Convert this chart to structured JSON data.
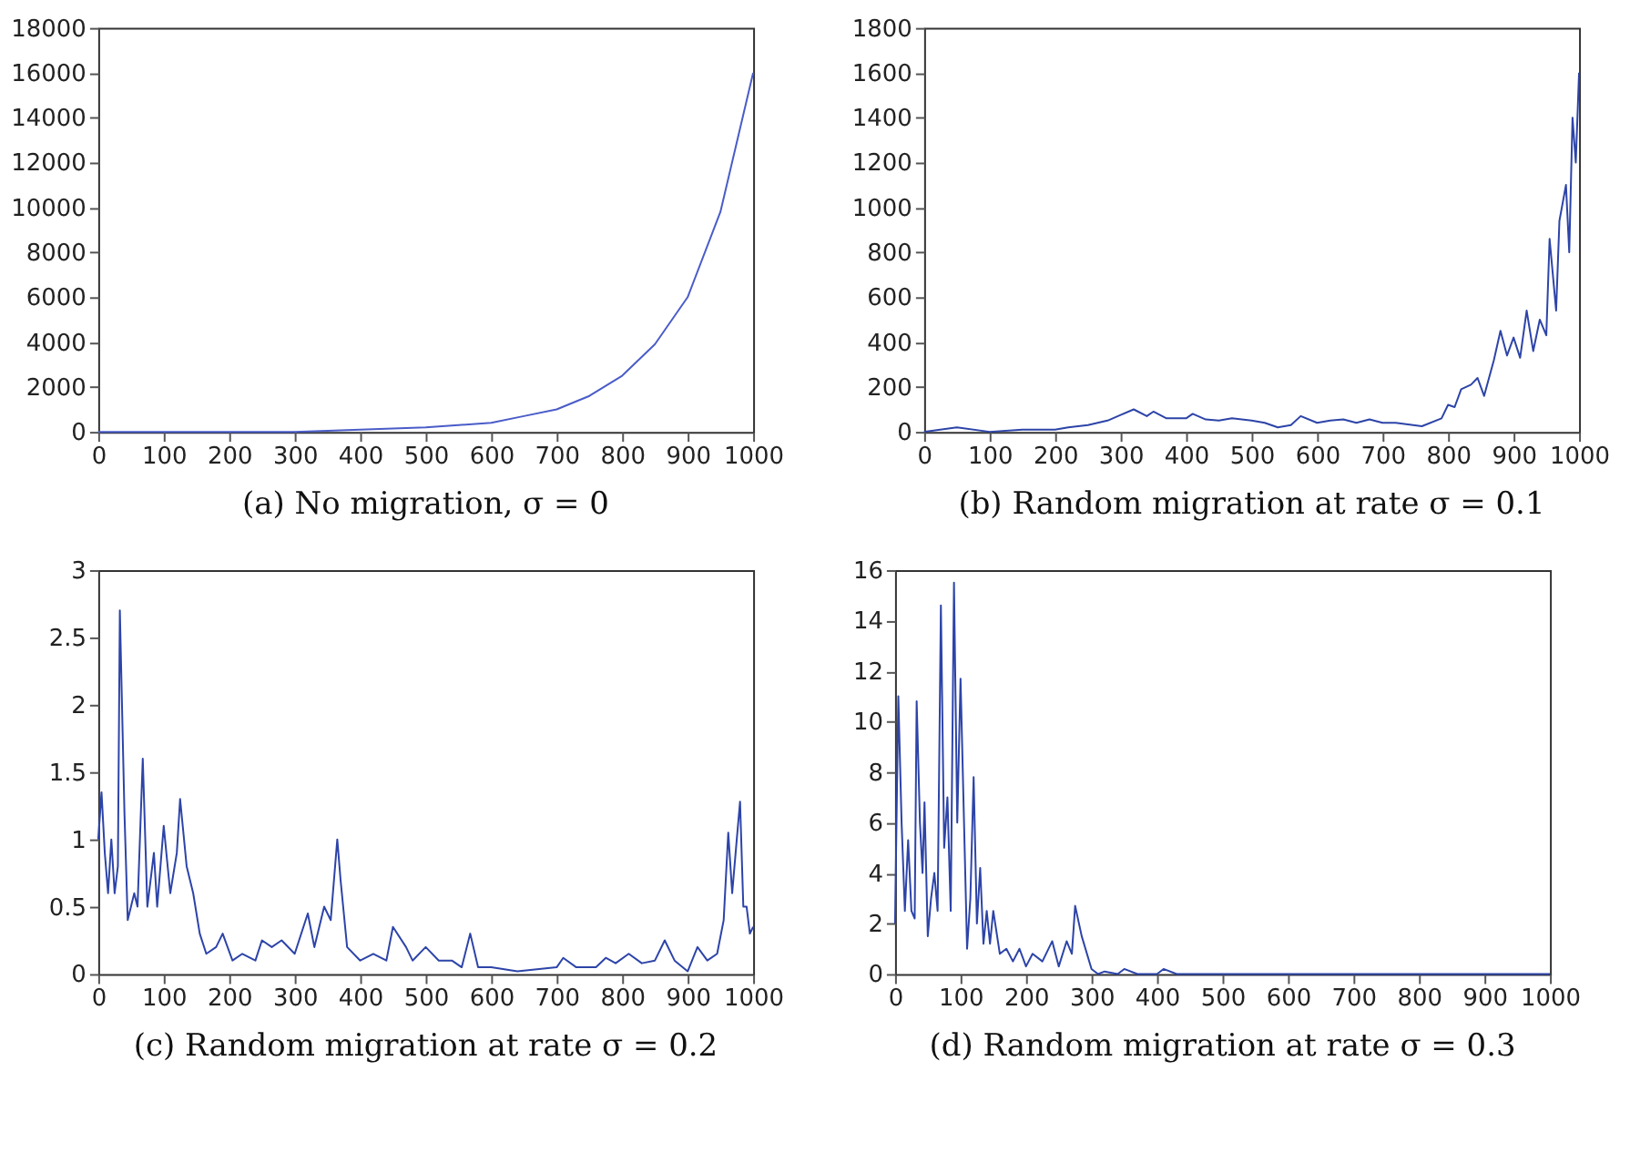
{
  "chart_data": [
    {
      "type": "line",
      "title": "(a) No migration, σ = 0",
      "x": [
        0,
        100,
        200,
        300,
        400,
        500,
        550,
        600,
        650,
        700,
        750,
        800,
        850,
        900,
        950,
        1000
      ],
      "series": [
        {
          "color": "#4a5cc8",
          "values": [
            0,
            0,
            0,
            0,
            100,
            200,
            300,
            400,
            700,
            1000,
            1600,
            2500,
            3900,
            6000,
            9800,
            16000
          ]
        }
      ],
      "xlim": [
        0,
        1000
      ],
      "xticks": [
        0,
        100,
        200,
        300,
        400,
        500,
        600,
        700,
        800,
        900,
        1000
      ],
      "ylim": [
        0,
        18000
      ],
      "yticks": [
        0,
        2000,
        4000,
        6000,
        8000,
        10000,
        12000,
        14000,
        16000,
        18000
      ],
      "grid": false
    },
    {
      "type": "line",
      "title": "(b) Random migration at rate σ = 0.1",
      "x": [
        0,
        50,
        100,
        150,
        200,
        220,
        250,
        280,
        300,
        320,
        340,
        350,
        370,
        400,
        410,
        430,
        450,
        470,
        500,
        520,
        540,
        560,
        575,
        600,
        620,
        640,
        660,
        680,
        700,
        720,
        760,
        790,
        800,
        810,
        820,
        835,
        845,
        855,
        870,
        880,
        890,
        900,
        910,
        920,
        930,
        940,
        950,
        955,
        965,
        970,
        980,
        985,
        990,
        995,
        1000
      ],
      "series": [
        {
          "color": "#2d44a8",
          "values": [
            0,
            20,
            0,
            10,
            10,
            20,
            30,
            50,
            75,
            100,
            70,
            90,
            60,
            60,
            80,
            55,
            50,
            60,
            50,
            40,
            20,
            30,
            70,
            40,
            50,
            55,
            40,
            55,
            40,
            40,
            25,
            60,
            120,
            110,
            190,
            210,
            240,
            160,
            320,
            450,
            340,
            420,
            330,
            540,
            360,
            500,
            430,
            860,
            540,
            940,
            1100,
            800,
            1400,
            1200,
            1600
          ]
        }
      ],
      "xlim": [
        0,
        1000
      ],
      "xticks": [
        0,
        100,
        200,
        300,
        400,
        500,
        600,
        700,
        800,
        900,
        1000
      ],
      "ylim": [
        0,
        1800
      ],
      "yticks": [
        0,
        200,
        400,
        600,
        800,
        1000,
        1200,
        1400,
        1600,
        1800
      ],
      "grid": false
    },
    {
      "type": "line",
      "title": "(c) Random migration at rate σ = 0.2",
      "x": [
        0,
        5,
        10,
        15,
        20,
        25,
        30,
        33,
        40,
        45,
        55,
        60,
        68,
        75,
        85,
        90,
        100,
        110,
        120,
        125,
        135,
        145,
        155,
        165,
        180,
        190,
        205,
        220,
        240,
        250,
        265,
        280,
        300,
        320,
        330,
        345,
        355,
        365,
        370,
        380,
        400,
        420,
        440,
        450,
        470,
        480,
        500,
        520,
        540,
        555,
        568,
        580,
        600,
        640,
        700,
        710,
        730,
        760,
        775,
        790,
        810,
        830,
        850,
        865,
        880,
        900,
        915,
        930,
        945,
        955,
        962,
        968,
        975,
        980,
        985,
        990,
        995,
        1000
      ],
      "series": [
        {
          "color": "#2d44a8",
          "values": [
            1.0,
            1.35,
            0.9,
            0.6,
            1.0,
            0.6,
            0.8,
            2.7,
            1.2,
            0.4,
            0.6,
            0.5,
            1.6,
            0.5,
            0.9,
            0.5,
            1.1,
            0.6,
            0.9,
            1.3,
            0.8,
            0.6,
            0.3,
            0.15,
            0.2,
            0.3,
            0.1,
            0.15,
            0.1,
            0.25,
            0.2,
            0.25,
            0.15,
            0.45,
            0.2,
            0.5,
            0.4,
            1.0,
            0.7,
            0.2,
            0.1,
            0.15,
            0.1,
            0.35,
            0.2,
            0.1,
            0.2,
            0.1,
            0.1,
            0.05,
            0.3,
            0.05,
            0.05,
            0.02,
            0.05,
            0.12,
            0.05,
            0.05,
            0.12,
            0.08,
            0.15,
            0.08,
            0.1,
            0.25,
            0.1,
            0.02,
            0.2,
            0.1,
            0.15,
            0.4,
            1.05,
            0.6,
            1.0,
            1.28,
            0.5,
            0.5,
            0.3,
            0.35
          ]
        }
      ],
      "xlim": [
        0,
        1000
      ],
      "xticks": [
        0,
        100,
        200,
        300,
        400,
        500,
        600,
        700,
        800,
        900,
        1000
      ],
      "ylim": [
        0,
        3
      ],
      "yticks": [
        0,
        0.5,
        1,
        1.5,
        2,
        2.5,
        3
      ],
      "grid": false
    },
    {
      "type": "line",
      "title": "(d) Random migration at rate σ = 0.3",
      "x": [
        0,
        5,
        10,
        15,
        20,
        25,
        30,
        33,
        38,
        42,
        45,
        50,
        55,
        60,
        65,
        70,
        75,
        80,
        85,
        90,
        95,
        100,
        110,
        115,
        120,
        125,
        130,
        135,
        140,
        145,
        150,
        160,
        170,
        180,
        190,
        200,
        210,
        225,
        240,
        250,
        262,
        270,
        275,
        285,
        300,
        310,
        320,
        340,
        350,
        370,
        400,
        410,
        430,
        500,
        1000
      ],
      "series": [
        {
          "color": "#2d44a8",
          "values": [
            2,
            11,
            6,
            2.5,
            5.3,
            2.5,
            2.2,
            10.8,
            6,
            4,
            6.8,
            1.5,
            3,
            4,
            2.5,
            14.6,
            5,
            7,
            2.5,
            15.5,
            6,
            11.7,
            1,
            3,
            7.8,
            2,
            4.2,
            1.2,
            2.5,
            1.2,
            2.5,
            0.8,
            1,
            0.5,
            1,
            0.3,
            0.8,
            0.5,
            1.3,
            0.3,
            1.3,
            0.8,
            2.7,
            1.5,
            0.2,
            0,
            0.1,
            0,
            0.2,
            0,
            0,
            0.2,
            0,
            0,
            0
          ]
        }
      ],
      "xlim": [
        0,
        1000
      ],
      "xticks": [
        0,
        100,
        200,
        300,
        400,
        500,
        600,
        700,
        800,
        900,
        1000
      ],
      "ylim": [
        0,
        16
      ],
      "yticks": [
        0,
        2,
        4,
        6,
        8,
        10,
        12,
        14,
        16
      ],
      "grid": false
    }
  ]
}
